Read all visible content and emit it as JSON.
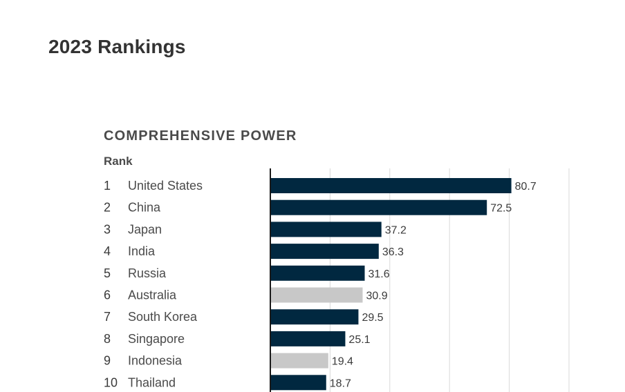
{
  "page": {
    "title": "2023 Rankings"
  },
  "chart_data": {
    "type": "bar",
    "orientation": "horizontal",
    "title": "COMPREHENSIVE POWER",
    "rank_header": "Rank",
    "xlim": [
      0,
      100
    ],
    "grid": true,
    "colors": {
      "default": "#012840",
      "highlight": "#c8c8c8"
    },
    "rows": [
      {
        "rank": "1",
        "country": "United States",
        "value": 80.7,
        "label": "80.7",
        "highlight": false
      },
      {
        "rank": "2",
        "country": "China",
        "value": 72.5,
        "label": "72.5",
        "highlight": false
      },
      {
        "rank": "3",
        "country": "Japan",
        "value": 37.2,
        "label": "37.2",
        "highlight": false
      },
      {
        "rank": "4",
        "country": "India",
        "value": 36.3,
        "label": "36.3",
        "highlight": false
      },
      {
        "rank": "5",
        "country": "Russia",
        "value": 31.6,
        "label": "31.6",
        "highlight": false
      },
      {
        "rank": "6",
        "country": "Australia",
        "value": 30.9,
        "label": "30.9",
        "highlight": true
      },
      {
        "rank": "7",
        "country": "South Korea",
        "value": 29.5,
        "label": "29.5",
        "highlight": false
      },
      {
        "rank": "8",
        "country": "Singapore",
        "value": 25.1,
        "label": "25.1",
        "highlight": false
      },
      {
        "rank": "9",
        "country": "Indonesia",
        "value": 19.4,
        "label": "19.4",
        "highlight": true
      },
      {
        "rank": "10",
        "country": "Thailand",
        "value": 18.7,
        "label": "18.7",
        "highlight": false
      }
    ]
  }
}
